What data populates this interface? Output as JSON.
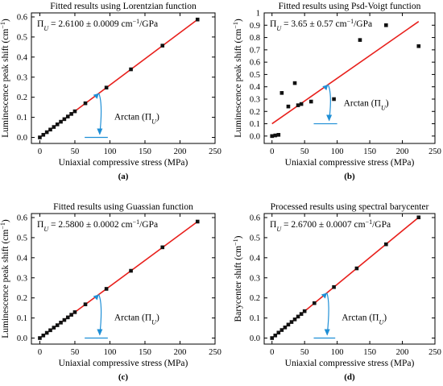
{
  "figure": {
    "colors": {
      "fit_line": "#e8201c",
      "points": "#111111",
      "arrow": "#1f8fd6",
      "axis": "#000000"
    }
  },
  "chart_data": [
    {
      "type": "scatter",
      "panel_label": "(a)",
      "title": "Fitted results using Lorentzian function",
      "annotation": {
        "prefix": "Π",
        "sub": "U",
        "text": " = 2.6100 ± 0.0009 cm",
        "sup": "−1",
        "suffix": "/GPa"
      },
      "arrow_label": {
        "text": "Arctan (Π",
        "sub": "U",
        "close": ")"
      },
      "xlabel": "Uniaxial compressive stress (MPa)",
      "ylabel": "Luminescence peak shift (cm",
      "ylabel_sup": "−1",
      "ylabel_close": ")",
      "xlim": [
        -12,
        250
      ],
      "ylim": [
        -0.03,
        0.62
      ],
      "xticks": [
        0,
        50,
        100,
        150,
        200,
        250
      ],
      "xtick_labels": [
        "0",
        "50",
        "100",
        "150",
        "200",
        "250"
      ],
      "yticks": [
        0.0,
        0.1,
        0.2,
        0.3,
        0.4,
        0.5,
        0.6
      ],
      "ytick_labels": [
        "0.0",
        "0.1",
        "0.2",
        "0.3",
        "0.4",
        "0.5",
        "0.6"
      ],
      "points": [
        [
          0,
          0
        ],
        [
          5,
          0.013
        ],
        [
          10,
          0.026
        ],
        [
          15,
          0.039
        ],
        [
          20,
          0.052
        ],
        [
          25,
          0.065
        ],
        [
          30,
          0.078
        ],
        [
          35,
          0.091
        ],
        [
          40,
          0.104
        ],
        [
          45,
          0.117
        ],
        [
          50,
          0.13
        ],
        [
          65,
          0.17
        ],
        [
          95,
          0.248
        ],
        [
          130,
          0.339
        ],
        [
          175,
          0.457
        ],
        [
          225,
          0.587
        ]
      ],
      "fit_line": [
        [
          0,
          0
        ],
        [
          225,
          0.587
        ]
      ],
      "arrow": {
        "start": [
          64,
          0
        ],
        "end": [
          97,
          0
        ]
      }
    },
    {
      "type": "scatter",
      "panel_label": "(b)",
      "title": "Fitted results using Psd-Voigt function",
      "annotation": {
        "prefix": "Π",
        "sub": "U",
        "text": " = 3.65 ± 0.57 cm",
        "sup": "−1",
        "suffix": "/GPa"
      },
      "arrow_label": {
        "text": "Arctan (Π",
        "sub": "U",
        "close": ")"
      },
      "xlabel": "Uniaxial compressive stress (MPa)",
      "ylabel": "Luminescence peak shift (cm",
      "ylabel_sup": "−1",
      "ylabel_close": ")",
      "xlim": [
        -12,
        250
      ],
      "ylim": [
        -0.06,
        1.0
      ],
      "xticks": [
        0,
        50,
        100,
        150,
        200,
        250
      ],
      "xtick_labels": [
        "0",
        "50",
        "100",
        "150",
        "200",
        "250"
      ],
      "yticks": [
        0.0,
        0.1,
        0.2,
        0.3,
        0.4,
        0.5,
        0.6,
        0.7,
        0.8,
        0.9,
        1.0
      ],
      "ytick_labels": [
        "0.0",
        "0.1",
        "0.2",
        "0.3",
        "0.4",
        "0.5",
        "0.6",
        "0.7",
        "0.8",
        "0.9",
        "1"
      ],
      "points": [
        [
          0,
          0.0
        ],
        [
          5,
          0.005
        ],
        [
          10,
          0.01
        ],
        [
          15,
          0.35
        ],
        [
          25,
          0.24
        ],
        [
          35,
          0.43
        ],
        [
          40,
          0.25
        ],
        [
          45,
          0.26
        ],
        [
          60,
          0.28
        ],
        [
          95,
          0.3
        ],
        [
          135,
          0.78
        ],
        [
          175,
          0.9
        ],
        [
          225,
          0.73
        ]
      ],
      "fit_line": [
        [
          0,
          0.1
        ],
        [
          225,
          0.93
        ]
      ],
      "arrow": {
        "start": [
          64,
          0.1
        ],
        "end": [
          100,
          0.1
        ]
      }
    },
    {
      "type": "scatter",
      "panel_label": "(c)",
      "title": "Fitted results using Guassian function",
      "annotation": {
        "prefix": "Π",
        "sub": "U",
        "text": " = 2.5800 ± 0.0002 cm",
        "sup": "−1",
        "suffix": "/GPa"
      },
      "arrow_label": {
        "text": "Arctan (Π",
        "sub": "U",
        "close": ")"
      },
      "xlabel": "Uniaxial compressive stress (MPa)",
      "ylabel": "Luminescence peak shift (cm",
      "ylabel_sup": "−1",
      "ylabel_close": ")",
      "xlim": [
        -12,
        250
      ],
      "ylim": [
        -0.03,
        0.62
      ],
      "xticks": [
        0,
        50,
        100,
        150,
        200,
        250
      ],
      "xtick_labels": [
        "0",
        "50",
        "100",
        "150",
        "200",
        "250"
      ],
      "yticks": [
        0.0,
        0.1,
        0.2,
        0.3,
        0.4,
        0.5,
        0.6
      ],
      "ytick_labels": [
        "0.0",
        "0.1",
        "0.2",
        "0.3",
        "0.4",
        "0.5",
        "0.6"
      ],
      "points": [
        [
          0,
          0
        ],
        [
          5,
          0.013
        ],
        [
          10,
          0.026
        ],
        [
          15,
          0.039
        ],
        [
          20,
          0.052
        ],
        [
          25,
          0.064
        ],
        [
          30,
          0.077
        ],
        [
          35,
          0.09
        ],
        [
          40,
          0.103
        ],
        [
          45,
          0.116
        ],
        [
          50,
          0.129
        ],
        [
          65,
          0.168
        ],
        [
          95,
          0.245
        ],
        [
          130,
          0.335
        ],
        [
          175,
          0.452
        ],
        [
          225,
          0.58
        ]
      ],
      "fit_line": [
        [
          0,
          0
        ],
        [
          225,
          0.58
        ]
      ],
      "arrow": {
        "start": [
          64,
          0
        ],
        "end": [
          97,
          0
        ]
      }
    },
    {
      "type": "scatter",
      "panel_label": "(d)",
      "title": "Processed results using spectral barycenter",
      "annotation": {
        "prefix": "Π",
        "sub": "U",
        "text": " = 2.6700 ± 0.0007 cm",
        "sup": "−1",
        "suffix": "/GPa"
      },
      "arrow_label": {
        "text": "Arctan (Π",
        "sub": "U",
        "close": ")"
      },
      "xlabel": "Uniaxial compressive stress (MPa)",
      "ylabel": "Barycenter shift (cm",
      "ylabel_sup": "−1",
      "ylabel_close": ")",
      "xlim": [
        -12,
        250
      ],
      "ylim": [
        -0.03,
        0.62
      ],
      "xticks": [
        0,
        50,
        100,
        150,
        200,
        250
      ],
      "xtick_labels": [
        "0",
        "50",
        "100",
        "150",
        "200",
        "250"
      ],
      "yticks": [
        0.0,
        0.1,
        0.2,
        0.3,
        0.4,
        0.5,
        0.6
      ],
      "ytick_labels": [
        "0.0",
        "0.1",
        "0.2",
        "0.3",
        "0.4",
        "0.5",
        "0.6"
      ],
      "points": [
        [
          0,
          0
        ],
        [
          5,
          0.013
        ],
        [
          10,
          0.027
        ],
        [
          15,
          0.04
        ],
        [
          20,
          0.053
        ],
        [
          25,
          0.067
        ],
        [
          30,
          0.08
        ],
        [
          35,
          0.093
        ],
        [
          40,
          0.107
        ],
        [
          45,
          0.12
        ],
        [
          50,
          0.134
        ],
        [
          65,
          0.174
        ],
        [
          95,
          0.254
        ],
        [
          130,
          0.347
        ],
        [
          175,
          0.467
        ],
        [
          225,
          0.601
        ]
      ],
      "fit_line": [
        [
          0,
          0
        ],
        [
          225,
          0.601
        ]
      ],
      "arrow": {
        "start": [
          64,
          0
        ],
        "end": [
          97,
          0
        ]
      }
    }
  ]
}
